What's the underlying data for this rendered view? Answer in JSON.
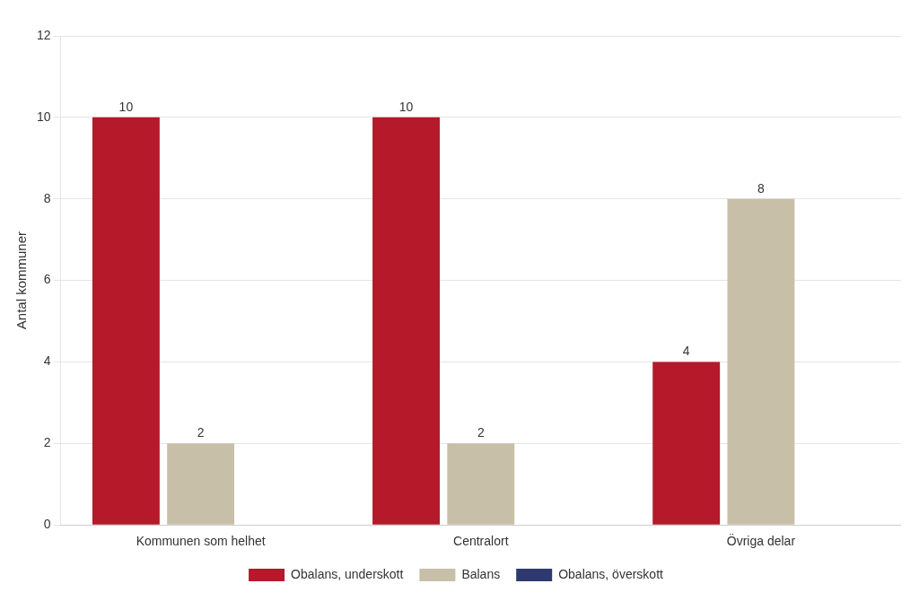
{
  "chart_data": {
    "type": "bar",
    "ylabel": "Antal kommuner",
    "categories": [
      "Kommunen som helhet",
      "Centralort",
      "Övriga delar"
    ],
    "series": [
      {
        "name": "Obalans, underskott",
        "color": "#b5192a",
        "values": [
          10,
          10,
          4
        ]
      },
      {
        "name": "Balans",
        "color": "#c8bfa8",
        "values": [
          2,
          2,
          8
        ]
      },
      {
        "name": "Obalans, överskott",
        "color": "#2e3a6e",
        "values": [
          0,
          0,
          0
        ]
      }
    ],
    "ylim": [
      0,
      12
    ],
    "yticks": [
      0,
      2,
      4,
      6,
      8,
      10,
      12
    ],
    "grid": true,
    "legend": "bottom",
    "data_labels": true
  }
}
